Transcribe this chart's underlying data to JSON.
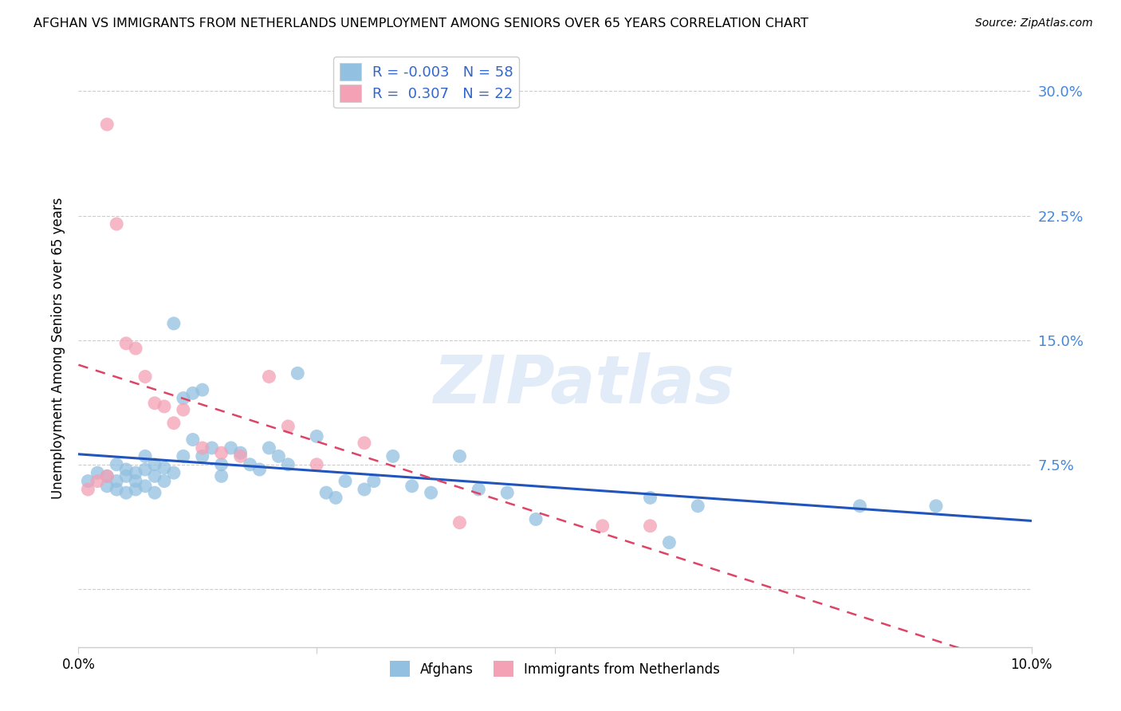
{
  "title": "AFGHAN VS IMMIGRANTS FROM NETHERLANDS UNEMPLOYMENT AMONG SENIORS OVER 65 YEARS CORRELATION CHART",
  "source": "Source: ZipAtlas.com",
  "ylabel": "Unemployment Among Seniors over 65 years",
  "ytick_labels": [
    "",
    "7.5%",
    "15.0%",
    "22.5%",
    "30.0%"
  ],
  "ytick_values": [
    0.0,
    0.075,
    0.15,
    0.225,
    0.3
  ],
  "xlim": [
    0.0,
    0.1
  ],
  "ylim": [
    -0.035,
    0.325
  ],
  "afghan_color": "#92c0e0",
  "netherlands_color": "#f4a0b5",
  "afghan_line_color": "#2255bb",
  "netherlands_line_color": "#dd4466",
  "watermark": "ZIPatlas",
  "afghan_x": [
    0.001,
    0.002,
    0.003,
    0.003,
    0.004,
    0.004,
    0.004,
    0.005,
    0.005,
    0.005,
    0.006,
    0.006,
    0.006,
    0.007,
    0.007,
    0.007,
    0.008,
    0.008,
    0.008,
    0.009,
    0.009,
    0.01,
    0.01,
    0.011,
    0.011,
    0.012,
    0.012,
    0.013,
    0.013,
    0.014,
    0.015,
    0.015,
    0.016,
    0.017,
    0.018,
    0.019,
    0.02,
    0.021,
    0.022,
    0.023,
    0.025,
    0.026,
    0.027,
    0.028,
    0.03,
    0.031,
    0.033,
    0.035,
    0.037,
    0.04,
    0.042,
    0.045,
    0.048,
    0.06,
    0.062,
    0.065,
    0.082,
    0.09
  ],
  "afghan_y": [
    0.065,
    0.07,
    0.068,
    0.062,
    0.075,
    0.065,
    0.06,
    0.072,
    0.068,
    0.058,
    0.07,
    0.065,
    0.06,
    0.08,
    0.072,
    0.062,
    0.075,
    0.068,
    0.058,
    0.073,
    0.065,
    0.16,
    0.07,
    0.115,
    0.08,
    0.118,
    0.09,
    0.12,
    0.08,
    0.085,
    0.075,
    0.068,
    0.085,
    0.082,
    0.075,
    0.072,
    0.085,
    0.08,
    0.075,
    0.13,
    0.092,
    0.058,
    0.055,
    0.065,
    0.06,
    0.065,
    0.08,
    0.062,
    0.058,
    0.08,
    0.06,
    0.058,
    0.042,
    0.055,
    0.028,
    0.05,
    0.05,
    0.05
  ],
  "netherlands_x": [
    0.001,
    0.002,
    0.003,
    0.003,
    0.004,
    0.005,
    0.006,
    0.007,
    0.008,
    0.009,
    0.01,
    0.011,
    0.013,
    0.015,
    0.017,
    0.02,
    0.022,
    0.025,
    0.03,
    0.04,
    0.055,
    0.06
  ],
  "netherlands_y": [
    0.06,
    0.065,
    0.28,
    0.068,
    0.22,
    0.148,
    0.145,
    0.128,
    0.112,
    0.11,
    0.1,
    0.108,
    0.085,
    0.082,
    0.08,
    0.128,
    0.098,
    0.075,
    0.088,
    0.04,
    0.038,
    0.038
  ]
}
